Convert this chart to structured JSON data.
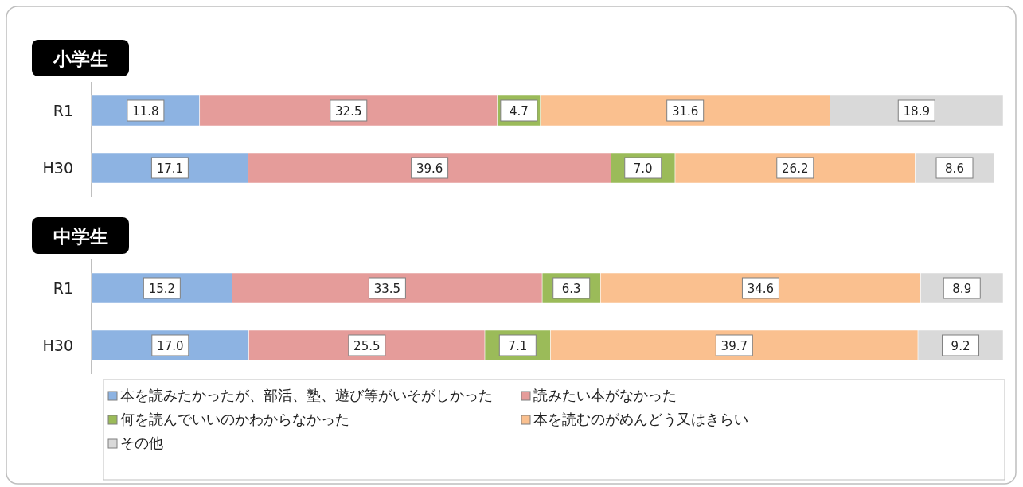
{
  "chart_data": [
    {
      "type": "bar",
      "orientation": "horizontal",
      "stacked": true,
      "title": "小学生",
      "categories": [
        "R1",
        "H30"
      ],
      "legend": false,
      "series": [
        {
          "color": "#8db3e2",
          "values": [
            11.8,
            17.1
          ],
          "value_labels": [
            "11.8",
            "17.1"
          ]
        },
        {
          "color": "#e59c9a",
          "values": [
            32.5,
            39.6
          ],
          "value_labels": [
            "32.5",
            "39.6"
          ]
        },
        {
          "color": "#9bbb59",
          "values": [
            4.7,
            7.0
          ],
          "value_labels": [
            "4.7",
            "7.0"
          ]
        },
        {
          "color": "#fac08f",
          "values": [
            31.6,
            26.2
          ],
          "value_labels": [
            "31.6",
            "26.2"
          ]
        },
        {
          "color": "#d9d9d9",
          "values": [
            18.9,
            8.6
          ],
          "value_labels": [
            "18.9",
            "8.6"
          ]
        }
      ]
    },
    {
      "type": "bar",
      "orientation": "horizontal",
      "stacked": true,
      "title": "中学生",
      "categories": [
        "R1",
        "H30"
      ],
      "legend": "bottom",
      "series": [
        {
          "name": "本を読みたかったが、部活、塾、遊び等がいそがしかった",
          "color": "#8db3e2",
          "values": [
            15.2,
            17.0
          ],
          "value_labels": [
            "15.2",
            "17.0"
          ]
        },
        {
          "name": "読みたい本がなかった",
          "color": "#e59c9a",
          "values": [
            33.5,
            25.5
          ],
          "value_labels": [
            "33.5",
            "25.5"
          ]
        },
        {
          "name": "何を読んでいいのかわからなかった",
          "color": "#9bbb59",
          "values": [
            6.3,
            7.1
          ],
          "value_labels": [
            "6.3",
            "7.1"
          ]
        },
        {
          "name": "本を読むのがめんどう又はきらい",
          "color": "#fac08f",
          "values": [
            34.6,
            39.7
          ],
          "value_labels": [
            "34.6",
            "39.7"
          ]
        },
        {
          "name": "その他",
          "color": "#d9d9d9",
          "values": [
            8.9,
            9.2
          ],
          "value_labels": [
            "8.9",
            "9.2"
          ]
        }
      ]
    }
  ]
}
